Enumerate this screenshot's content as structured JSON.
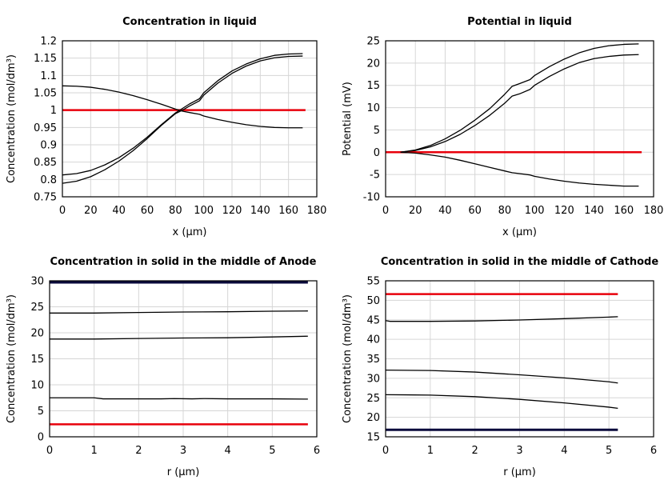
{
  "chart_data": [
    {
      "type": "line",
      "title": "Concentration in liquid",
      "xlabel": "x (µm)",
      "ylabel": "Concentration (mol/dm³)",
      "xlim": [
        0,
        180
      ],
      "ylim": [
        0.75,
        1.2
      ],
      "xticks": [
        "0",
        "20",
        "40",
        "60",
        "80",
        "100",
        "120",
        "140",
        "160",
        "180"
      ],
      "yticks": [
        "0.75",
        "0.8",
        "0.85",
        "0.9",
        "0.95",
        "1",
        "1.05",
        "1.1",
        "1.15",
        "1.2"
      ],
      "grid": true,
      "series": [
        {
          "name": "initial",
          "color": "#e8000b",
          "width": 2.5,
          "x": [
            0,
            172
          ],
          "y": [
            1.0,
            1.0
          ]
        },
        {
          "name": "curve-upper-rising",
          "color": "#000000",
          "width": 1.3,
          "x": [
            0,
            10,
            20,
            30,
            40,
            50,
            60,
            70,
            80,
            85,
            90,
            97,
            100,
            110,
            120,
            130,
            140,
            150,
            160,
            170
          ],
          "y": [
            0.813,
            0.817,
            0.826,
            0.842,
            0.863,
            0.89,
            0.922,
            0.958,
            0.992,
            1.005,
            1.018,
            1.033,
            1.05,
            1.085,
            1.113,
            1.133,
            1.148,
            1.158,
            1.162,
            1.163
          ]
        },
        {
          "name": "curve-lower-rising",
          "color": "#000000",
          "width": 1.3,
          "x": [
            0,
            10,
            20,
            30,
            40,
            50,
            60,
            70,
            80,
            85,
            90,
            97,
            100,
            110,
            120,
            130,
            140,
            150,
            160,
            170
          ],
          "y": [
            0.789,
            0.795,
            0.808,
            0.828,
            0.853,
            0.883,
            0.918,
            0.956,
            0.99,
            1.0,
            1.012,
            1.027,
            1.043,
            1.078,
            1.106,
            1.127,
            1.142,
            1.151,
            1.155,
            1.156
          ]
        },
        {
          "name": "curve-falling",
          "color": "#000000",
          "width": 1.3,
          "x": [
            0,
            10,
            20,
            30,
            40,
            50,
            60,
            70,
            80,
            85,
            90,
            97,
            100,
            110,
            120,
            130,
            140,
            150,
            160,
            170
          ],
          "y": [
            1.07,
            1.069,
            1.066,
            1.06,
            1.052,
            1.042,
            1.03,
            1.017,
            1.003,
            0.997,
            0.993,
            0.988,
            0.983,
            0.973,
            0.965,
            0.958,
            0.953,
            0.95,
            0.949,
            0.949
          ]
        }
      ]
    },
    {
      "type": "line",
      "title": "Potential in liquid",
      "xlabel": "x (µm)",
      "ylabel": "Potential (mV)",
      "xlim": [
        0,
        180
      ],
      "ylim": [
        -10,
        25
      ],
      "xticks": [
        "0",
        "20",
        "40",
        "60",
        "80",
        "100",
        "120",
        "140",
        "160",
        "180"
      ],
      "yticks": [
        "-10",
        "-5",
        "0",
        "5",
        "10",
        "15",
        "20",
        "25"
      ],
      "grid": true,
      "series": [
        {
          "name": "initial",
          "color": "#e8000b",
          "width": 2.5,
          "x": [
            0,
            172
          ],
          "y": [
            0,
            0
          ]
        },
        {
          "name": "curve-top",
          "color": "#000000",
          "width": 1.3,
          "x": [
            10,
            20,
            30,
            40,
            50,
            60,
            70,
            80,
            85,
            90,
            97,
            100,
            110,
            120,
            130,
            140,
            150,
            160,
            170
          ],
          "y": [
            0,
            0.5,
            1.5,
            3.0,
            4.9,
            7.2,
            9.8,
            13.0,
            14.8,
            15.4,
            16.3,
            17.2,
            19.2,
            20.9,
            22.3,
            23.3,
            23.9,
            24.2,
            24.3
          ]
        },
        {
          "name": "curve-middle",
          "color": "#000000",
          "width": 1.3,
          "x": [
            10,
            20,
            30,
            40,
            50,
            60,
            70,
            80,
            85,
            90,
            97,
            100,
            110,
            120,
            130,
            140,
            150,
            160,
            170
          ],
          "y": [
            0,
            0.4,
            1.2,
            2.4,
            4.0,
            6.0,
            8.3,
            11.0,
            12.6,
            13.1,
            14.1,
            15.0,
            17.0,
            18.7,
            20.1,
            21.0,
            21.5,
            21.8,
            21.9
          ]
        },
        {
          "name": "curve-bottom",
          "color": "#000000",
          "width": 1.3,
          "x": [
            10,
            20,
            30,
            40,
            50,
            60,
            70,
            80,
            85,
            90,
            97,
            100,
            110,
            120,
            130,
            140,
            150,
            160,
            170
          ],
          "y": [
            0,
            -0.2,
            -0.6,
            -1.1,
            -1.8,
            -2.6,
            -3.4,
            -4.2,
            -4.6,
            -4.8,
            -5.1,
            -5.4,
            -6.0,
            -6.5,
            -6.9,
            -7.2,
            -7.4,
            -7.6,
            -7.6
          ]
        }
      ]
    },
    {
      "type": "line",
      "title": "Concentration in solid in the middle of Anode",
      "xlabel": "r (µm)",
      "ylabel": "Concentration (mol/dm³)",
      "xlim": [
        0,
        6
      ],
      "ylim": [
        0,
        30
      ],
      "xticks": [
        "0",
        "1",
        "2",
        "3",
        "4",
        "5",
        "6"
      ],
      "yticks": [
        "0",
        "5",
        "10",
        "15",
        "20",
        "25",
        "30"
      ],
      "grid": true,
      "series": [
        {
          "name": "navy-top",
          "color": "#0a0a3c",
          "width": 3,
          "x": [
            0,
            5.8
          ],
          "y": [
            29.7,
            29.7
          ]
        },
        {
          "name": "curve-24",
          "color": "#000000",
          "width": 1.3,
          "x": [
            0,
            1,
            2,
            3,
            4,
            5,
            5.8
          ],
          "y": [
            23.8,
            23.8,
            23.9,
            24.0,
            24.05,
            24.15,
            24.2
          ]
        },
        {
          "name": "curve-19",
          "color": "#000000",
          "width": 1.3,
          "x": [
            0,
            1,
            2,
            3,
            4,
            5,
            5.8
          ],
          "y": [
            18.8,
            18.8,
            18.9,
            19.0,
            19.05,
            19.2,
            19.35
          ]
        },
        {
          "name": "curve-7",
          "color": "#000000",
          "width": 1.3,
          "x": [
            0,
            1,
            1.2,
            2,
            2.5,
            2.8,
            3.2,
            3.5,
            4,
            5,
            5.8
          ],
          "y": [
            7.5,
            7.5,
            7.3,
            7.3,
            7.3,
            7.35,
            7.3,
            7.35,
            7.3,
            7.3,
            7.25
          ]
        },
        {
          "name": "red-bottom",
          "color": "#e8000b",
          "width": 2.5,
          "x": [
            0,
            5.8
          ],
          "y": [
            2.4,
            2.4
          ]
        }
      ]
    },
    {
      "type": "line",
      "title": "Concentration in solid in the middle of Cathode",
      "xlabel": "r (µm)",
      "ylabel": "Concentration (mol/dm³)",
      "xlim": [
        0,
        6
      ],
      "ylim": [
        15,
        55
      ],
      "xticks": [
        "0",
        "1",
        "2",
        "3",
        "4",
        "5",
        "6"
      ],
      "yticks": [
        "15",
        "20",
        "25",
        "30",
        "35",
        "40",
        "45",
        "50",
        "55"
      ],
      "grid": true,
      "series": [
        {
          "name": "red-top",
          "color": "#e8000b",
          "width": 2.5,
          "x": [
            0,
            5.2
          ],
          "y": [
            51.6,
            51.6
          ]
        },
        {
          "name": "curve-45",
          "color": "#000000",
          "width": 1.3,
          "x": [
            0,
            0.1,
            1,
            2,
            3,
            4,
            5,
            5.2
          ],
          "y": [
            44.8,
            44.6,
            44.6,
            44.7,
            44.95,
            45.3,
            45.7,
            45.8
          ]
        },
        {
          "name": "curve-32",
          "color": "#000000",
          "width": 1.3,
          "x": [
            0,
            1,
            2,
            3,
            4,
            5,
            5.2
          ],
          "y": [
            32.1,
            32.0,
            31.6,
            30.9,
            30.1,
            29.1,
            28.8
          ]
        },
        {
          "name": "curve-26",
          "color": "#000000",
          "width": 1.3,
          "x": [
            0,
            1,
            2,
            3,
            4,
            5,
            5.2
          ],
          "y": [
            25.8,
            25.7,
            25.3,
            24.6,
            23.7,
            22.6,
            22.3
          ]
        },
        {
          "name": "navy-bottom",
          "color": "#0a0a3c",
          "width": 3,
          "x": [
            0,
            5.2
          ],
          "y": [
            16.8,
            16.8
          ]
        }
      ]
    }
  ]
}
